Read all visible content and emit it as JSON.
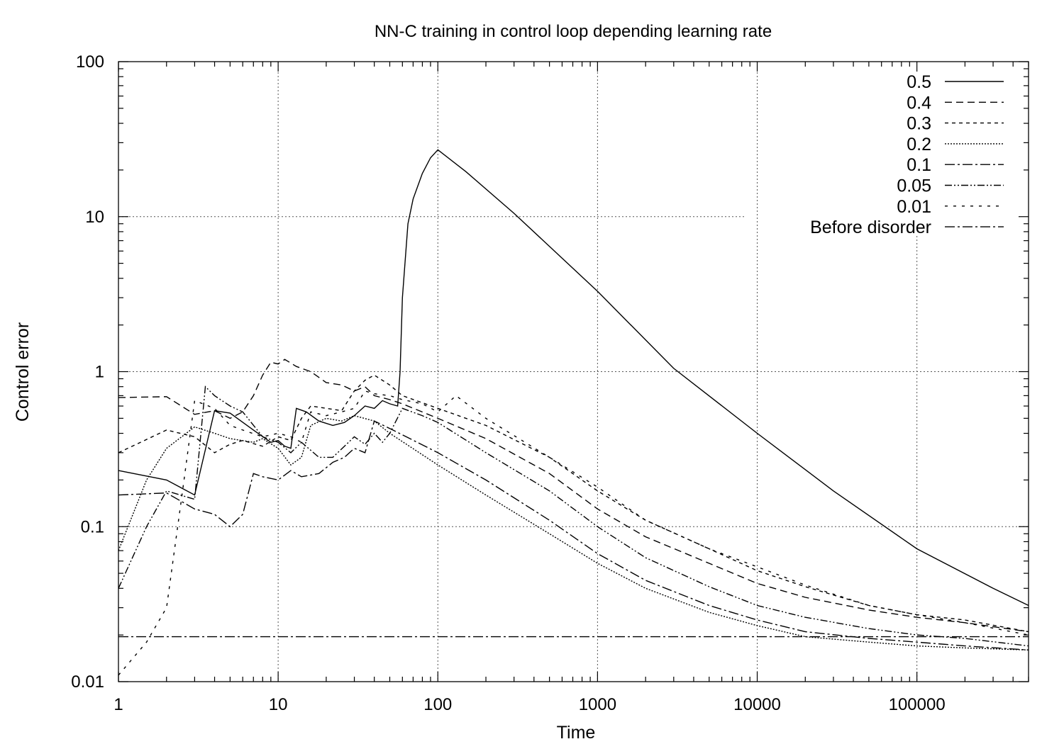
{
  "chart_data": {
    "type": "line",
    "title": "NN-C training in control loop depending learning rate",
    "xlabel": "Time",
    "ylabel": "Control error",
    "xscale": "log",
    "yscale": "log",
    "xlim": [
      1,
      500000
    ],
    "ylim": [
      0.01,
      100
    ],
    "grid": true,
    "legend_position": "top-right",
    "x_ticks": [
      1,
      10,
      100,
      1000,
      10000,
      100000
    ],
    "x_tick_labels": [
      "1",
      "10",
      "100",
      "1000",
      "10000",
      "100000"
    ],
    "y_ticks": [
      0.01,
      0.1,
      1,
      10,
      100
    ],
    "y_tick_labels": [
      "0.01",
      "0.1",
      "1",
      "10",
      "100"
    ],
    "series": [
      {
        "name": "0.5",
        "dash": "",
        "points": [
          [
            1,
            0.23
          ],
          [
            2,
            0.2
          ],
          [
            3,
            0.16
          ],
          [
            4,
            0.56
          ],
          [
            5,
            0.54
          ],
          [
            7,
            0.42
          ],
          [
            9,
            0.35
          ],
          [
            10,
            0.36
          ],
          [
            11,
            0.33
          ],
          [
            12,
            0.32
          ],
          [
            13,
            0.58
          ],
          [
            15,
            0.55
          ],
          [
            18,
            0.48
          ],
          [
            22,
            0.45
          ],
          [
            26,
            0.47
          ],
          [
            30,
            0.52
          ],
          [
            35,
            0.6
          ],
          [
            40,
            0.58
          ],
          [
            45,
            0.65
          ],
          [
            50,
            0.62
          ],
          [
            56,
            0.6
          ],
          [
            58,
            1.0
          ],
          [
            60,
            3.0
          ],
          [
            65,
            9.0
          ],
          [
            70,
            13.0
          ],
          [
            80,
            19.0
          ],
          [
            90,
            24.0
          ],
          [
            100,
            27.0
          ],
          [
            150,
            19.5
          ],
          [
            300,
            10.5
          ],
          [
            1000,
            3.3
          ],
          [
            3000,
            1.05
          ],
          [
            10000,
            0.4
          ],
          [
            30000,
            0.17
          ],
          [
            100000,
            0.072
          ],
          [
            300000,
            0.04
          ],
          [
            500000,
            0.031
          ]
        ]
      },
      {
        "name": "0.4",
        "dash": "10 6",
        "points": [
          [
            1,
            0.68
          ],
          [
            2,
            0.69
          ],
          [
            3,
            0.53
          ],
          [
            4,
            0.56
          ],
          [
            5,
            0.5
          ],
          [
            6,
            0.55
          ],
          [
            7,
            0.7
          ],
          [
            8,
            0.95
          ],
          [
            9,
            1.15
          ],
          [
            10,
            1.12
          ],
          [
            11,
            1.2
          ],
          [
            13,
            1.08
          ],
          [
            16,
            1.0
          ],
          [
            20,
            0.85
          ],
          [
            25,
            0.82
          ],
          [
            30,
            0.75
          ],
          [
            35,
            0.8
          ],
          [
            40,
            0.7
          ],
          [
            50,
            0.66
          ],
          [
            60,
            0.62
          ],
          [
            100,
            0.5
          ],
          [
            200,
            0.37
          ],
          [
            500,
            0.22
          ],
          [
            1000,
            0.13
          ],
          [
            2000,
            0.086
          ],
          [
            5000,
            0.058
          ],
          [
            10000,
            0.043
          ],
          [
            20000,
            0.035
          ],
          [
            50000,
            0.029
          ],
          [
            100000,
            0.026
          ],
          [
            200000,
            0.024
          ],
          [
            500000,
            0.021
          ]
        ]
      },
      {
        "name": "0.3",
        "dash": "5 5",
        "points": [
          [
            1,
            0.3
          ],
          [
            2,
            0.42
          ],
          [
            3,
            0.38
          ],
          [
            4,
            0.3
          ],
          [
            5,
            0.34
          ],
          [
            6,
            0.36
          ],
          [
            8,
            0.33
          ],
          [
            10,
            0.38
          ],
          [
            12,
            0.36
          ],
          [
            14,
            0.5
          ],
          [
            16,
            0.6
          ],
          [
            20,
            0.58
          ],
          [
            25,
            0.56
          ],
          [
            30,
            0.75
          ],
          [
            35,
            0.88
          ],
          [
            40,
            0.95
          ],
          [
            50,
            0.82
          ],
          [
            60,
            0.7
          ],
          [
            80,
            0.63
          ],
          [
            100,
            0.58
          ],
          [
            200,
            0.45
          ],
          [
            500,
            0.28
          ],
          [
            1000,
            0.17
          ],
          [
            2000,
            0.11
          ],
          [
            5000,
            0.072
          ],
          [
            10000,
            0.052
          ],
          [
            20000,
            0.041
          ],
          [
            50000,
            0.031
          ],
          [
            100000,
            0.027
          ],
          [
            200000,
            0.025
          ],
          [
            500000,
            0.021
          ]
        ]
      },
      {
        "name": "0.2",
        "dash": "2 2",
        "points": [
          [
            1,
            0.07
          ],
          [
            1.5,
            0.2
          ],
          [
            2,
            0.32
          ],
          [
            3,
            0.44
          ],
          [
            4,
            0.4
          ],
          [
            5,
            0.37
          ],
          [
            7,
            0.35
          ],
          [
            8,
            0.37
          ],
          [
            10,
            0.32
          ],
          [
            12,
            0.25
          ],
          [
            14,
            0.28
          ],
          [
            16,
            0.45
          ],
          [
            20,
            0.5
          ],
          [
            25,
            0.48
          ],
          [
            30,
            0.52
          ],
          [
            40,
            0.48
          ],
          [
            50,
            0.4
          ],
          [
            100,
            0.25
          ],
          [
            200,
            0.16
          ],
          [
            500,
            0.09
          ],
          [
            1000,
            0.058
          ],
          [
            2000,
            0.04
          ],
          [
            5000,
            0.028
          ],
          [
            10000,
            0.023
          ],
          [
            20000,
            0.0195
          ],
          [
            50000,
            0.018
          ],
          [
            100000,
            0.017
          ],
          [
            200000,
            0.0165
          ],
          [
            500000,
            0.016
          ]
        ]
      },
      {
        "name": "0.1",
        "dash": "14 4 3 4",
        "points": [
          [
            1,
            0.16
          ],
          [
            2,
            0.165
          ],
          [
            3,
            0.13
          ],
          [
            4,
            0.12
          ],
          [
            5,
            0.1
          ],
          [
            6,
            0.12
          ],
          [
            7,
            0.22
          ],
          [
            8,
            0.21
          ],
          [
            10,
            0.2
          ],
          [
            12,
            0.23
          ],
          [
            14,
            0.21
          ],
          [
            18,
            0.22
          ],
          [
            22,
            0.26
          ],
          [
            26,
            0.28
          ],
          [
            30,
            0.32
          ],
          [
            35,
            0.3
          ],
          [
            40,
            0.48
          ],
          [
            50,
            0.43
          ],
          [
            100,
            0.3
          ],
          [
            200,
            0.2
          ],
          [
            500,
            0.11
          ],
          [
            1000,
            0.067
          ],
          [
            2000,
            0.045
          ],
          [
            5000,
            0.031
          ],
          [
            10000,
            0.025
          ],
          [
            20000,
            0.021
          ],
          [
            50000,
            0.019
          ],
          [
            100000,
            0.018
          ],
          [
            200000,
            0.017
          ],
          [
            500000,
            0.016
          ]
        ]
      },
      {
        "name": "0.05",
        "dash": "10 3 2 3 2 3",
        "points": [
          [
            1,
            0.04
          ],
          [
            1.5,
            0.1
          ],
          [
            2,
            0.17
          ],
          [
            3,
            0.15
          ],
          [
            3.5,
            0.8
          ],
          [
            4,
            0.7
          ],
          [
            5,
            0.6
          ],
          [
            6,
            0.55
          ],
          [
            8,
            0.38
          ],
          [
            10,
            0.35
          ],
          [
            12,
            0.3
          ],
          [
            14,
            0.35
          ],
          [
            18,
            0.28
          ],
          [
            22,
            0.28
          ],
          [
            26,
            0.33
          ],
          [
            30,
            0.38
          ],
          [
            35,
            0.34
          ],
          [
            40,
            0.4
          ],
          [
            45,
            0.35
          ],
          [
            50,
            0.4
          ],
          [
            60,
            0.58
          ],
          [
            80,
            0.52
          ],
          [
            100,
            0.47
          ],
          [
            200,
            0.3
          ],
          [
            500,
            0.17
          ],
          [
            1000,
            0.1
          ],
          [
            2000,
            0.063
          ],
          [
            5000,
            0.041
          ],
          [
            10000,
            0.031
          ],
          [
            20000,
            0.026
          ],
          [
            50000,
            0.022
          ],
          [
            100000,
            0.02
          ],
          [
            200000,
            0.019
          ],
          [
            500000,
            0.017
          ]
        ]
      },
      {
        "name": "0.01",
        "dash": "4 8",
        "points": [
          [
            1,
            0.011
          ],
          [
            1.5,
            0.018
          ],
          [
            2,
            0.03
          ],
          [
            2.5,
            0.16
          ],
          [
            3,
            0.65
          ],
          [
            4,
            0.58
          ],
          [
            5,
            0.45
          ],
          [
            6,
            0.42
          ],
          [
            8,
            0.38
          ],
          [
            10,
            0.4
          ],
          [
            12,
            0.38
          ],
          [
            14,
            0.35
          ],
          [
            16,
            0.55
          ],
          [
            20,
            0.52
          ],
          [
            25,
            0.55
          ],
          [
            30,
            0.58
          ],
          [
            35,
            0.75
          ],
          [
            40,
            0.72
          ],
          [
            50,
            0.7
          ],
          [
            60,
            0.66
          ],
          [
            80,
            0.62
          ],
          [
            100,
            0.55
          ],
          [
            130,
            0.7
          ],
          [
            200,
            0.5
          ],
          [
            500,
            0.28
          ],
          [
            1000,
            0.18
          ],
          [
            2000,
            0.11
          ],
          [
            5000,
            0.072
          ],
          [
            10000,
            0.055
          ],
          [
            20000,
            0.042
          ],
          [
            50000,
            0.031
          ],
          [
            100000,
            0.027
          ],
          [
            200000,
            0.024
          ],
          [
            500000,
            0.02
          ]
        ]
      },
      {
        "name": "Before disorder",
        "dash": "14 4 3 4",
        "points": [
          [
            1,
            0.0195
          ],
          [
            500000,
            0.0195
          ]
        ]
      }
    ]
  }
}
